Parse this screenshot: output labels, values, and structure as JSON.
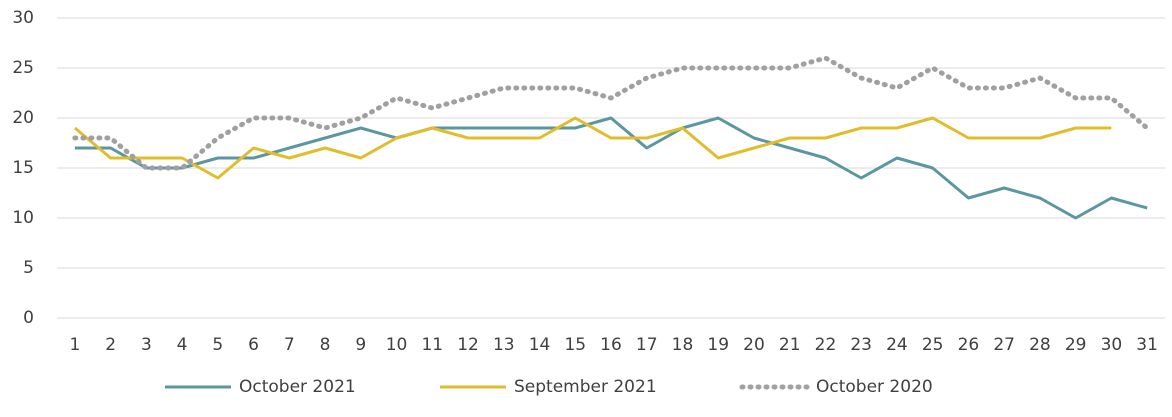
{
  "chart_data": {
    "type": "line",
    "categories": [
      "1",
      "2",
      "3",
      "4",
      "5",
      "6",
      "7",
      "8",
      "9",
      "10",
      "11",
      "12",
      "13",
      "14",
      "15",
      "16",
      "17",
      "18",
      "19",
      "20",
      "21",
      "22",
      "23",
      "24",
      "25",
      "26",
      "27",
      "28",
      "29",
      "30",
      "31"
    ],
    "series": [
      {
        "name": "October 2021",
        "color": "#5b97a1",
        "style": "solid",
        "values": [
          17,
          17,
          15,
          15,
          16,
          16,
          17,
          18,
          19,
          18,
          19,
          19,
          19,
          19,
          19,
          20,
          17,
          19,
          20,
          18,
          17,
          16,
          14,
          16,
          15,
          12,
          13,
          12,
          10,
          12,
          11
        ]
      },
      {
        "name": "September 2021",
        "color": "#e2bd2b",
        "style": "solid",
        "values": [
          19,
          16,
          16,
          16,
          14,
          17,
          16,
          17,
          16,
          18,
          19,
          18,
          18,
          18,
          20,
          18,
          18,
          19,
          16,
          17,
          18,
          18,
          19,
          19,
          20,
          18,
          18,
          18,
          19,
          19,
          null
        ]
      },
      {
        "name": "October 2020",
        "color": "#a0a0a0",
        "style": "dotted",
        "values": [
          18,
          18,
          15,
          15,
          18,
          20,
          20,
          19,
          20,
          22,
          21,
          22,
          23,
          23,
          23,
          22,
          24,
          25,
          25,
          25,
          25,
          26,
          24,
          23,
          25,
          23,
          23,
          24,
          22,
          22,
          19
        ]
      }
    ],
    "ylim": [
      0,
      30
    ],
    "yticks": [
      0,
      5,
      10,
      15,
      20,
      25,
      30
    ],
    "grid": true,
    "legend": "bottom"
  }
}
